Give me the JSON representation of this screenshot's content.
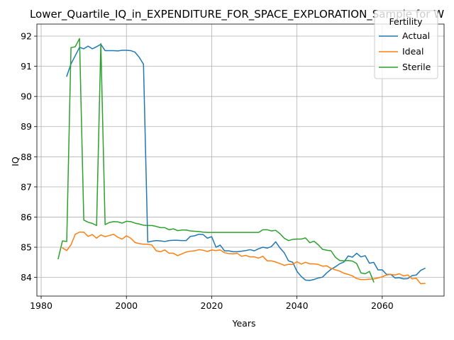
{
  "chart_data": {
    "type": "line",
    "title": "Lower_Quartile_IQ_in_EXPENDITURE_FOR_SPACE_EXPLORATION_Sample for W",
    "xlabel": "Years",
    "ylabel": "IQ",
    "xlim": [
      1979,
      2074.5
    ],
    "ylim": [
      83.38,
      92.4
    ],
    "xticks": [
      1980,
      2000,
      2020,
      2040,
      2060
    ],
    "yticks": [
      84,
      85,
      86,
      87,
      88,
      89,
      90,
      91,
      92
    ],
    "grid": true,
    "legend": {
      "title": "Fertility",
      "placement": "top-right"
    },
    "series": [
      {
        "name": "Actual",
        "color": "#1f77b4",
        "x": [
          1986,
          1987,
          1988,
          1989,
          1990,
          1991,
          1992,
          1993,
          1994,
          1995,
          1996,
          1997,
          1998,
          1999,
          2000,
          2001,
          2002,
          2003,
          2004,
          2005,
          2006,
          2007,
          2008,
          2009,
          2010,
          2011,
          2012,
          2013,
          2014,
          2015,
          2016,
          2017,
          2018,
          2019,
          2020,
          2021,
          2022,
          2023,
          2024,
          2025,
          2026,
          2027,
          2028,
          2029,
          2030,
          2031,
          2032,
          2033,
          2034,
          2035,
          2036,
          2037,
          2038,
          2039,
          2040,
          2041,
          2042,
          2043,
          2044,
          2045,
          2046,
          2047,
          2048,
          2049,
          2050,
          2051,
          2052,
          2053,
          2054,
          2055,
          2056,
          2057,
          2058,
          2059,
          2060,
          2061,
          2062,
          2063,
          2064,
          2065,
          2066,
          2067,
          2068,
          2069,
          2070
        ],
        "values": [
          90.67,
          91.08,
          91.35,
          91.63,
          91.58,
          91.67,
          91.58,
          91.65,
          91.73,
          91.52,
          91.52,
          91.52,
          91.51,
          91.53,
          91.53,
          91.52,
          91.47,
          91.3,
          91.07,
          85.17,
          85.2,
          85.22,
          85.21,
          85.19,
          85.22,
          85.23,
          85.23,
          85.22,
          85.22,
          85.36,
          85.38,
          85.43,
          85.42,
          85.3,
          85.35,
          85.0,
          85.07,
          84.88,
          84.88,
          84.85,
          84.85,
          84.87,
          84.89,
          84.92,
          84.88,
          84.95,
          85.0,
          84.97,
          85.02,
          85.18,
          84.98,
          84.82,
          84.55,
          84.5,
          84.2,
          84.03,
          83.91,
          83.9,
          83.93,
          83.98,
          84.01,
          84.15,
          84.27,
          84.35,
          84.45,
          84.51,
          84.71,
          84.67,
          84.8,
          84.68,
          84.72,
          84.47,
          84.5,
          84.25,
          84.25,
          84.1,
          84.1,
          83.98,
          83.99,
          83.95,
          83.96,
          84.06,
          84.08,
          84.23,
          84.3
        ]
      },
      {
        "name": "Ideal",
        "color": "#ff7f0e",
        "x": [
          1985,
          1986,
          1987,
          1988,
          1989,
          1990,
          1991,
          1992,
          1993,
          1994,
          1995,
          1996,
          1997,
          1998,
          1999,
          2000,
          2001,
          2002,
          2003,
          2004,
          2005,
          2006,
          2007,
          2008,
          2009,
          2010,
          2011,
          2012,
          2013,
          2014,
          2015,
          2016,
          2017,
          2018,
          2019,
          2020,
          2021,
          2022,
          2023,
          2024,
          2025,
          2026,
          2027,
          2028,
          2029,
          2030,
          2031,
          2032,
          2033,
          2034,
          2035,
          2036,
          2037,
          2038,
          2039,
          2040,
          2041,
          2042,
          2043,
          2044,
          2045,
          2046,
          2047,
          2048,
          2049,
          2050,
          2051,
          2052,
          2053,
          2054,
          2055,
          2056,
          2057,
          2058,
          2059,
          2060,
          2061,
          2062,
          2063,
          2064,
          2065,
          2066,
          2067,
          2068,
          2069,
          2070
        ],
        "values": [
          84.98,
          84.89,
          85.08,
          85.43,
          85.5,
          85.5,
          85.36,
          85.42,
          85.3,
          85.41,
          85.35,
          85.39,
          85.43,
          85.33,
          85.27,
          85.38,
          85.3,
          85.16,
          85.12,
          85.1,
          85.1,
          85.07,
          84.88,
          84.85,
          84.91,
          84.8,
          84.8,
          84.72,
          84.78,
          84.84,
          84.87,
          84.88,
          84.92,
          84.9,
          84.86,
          84.91,
          84.89,
          84.91,
          84.82,
          84.79,
          84.78,
          84.8,
          84.7,
          84.73,
          84.68,
          84.68,
          84.64,
          84.7,
          84.55,
          84.55,
          84.51,
          84.46,
          84.4,
          84.43,
          84.43,
          84.52,
          84.44,
          84.5,
          84.45,
          84.45,
          84.43,
          84.37,
          84.38,
          84.3,
          84.25,
          84.21,
          84.14,
          84.1,
          84.05,
          83.96,
          83.93,
          83.93,
          83.94,
          83.95,
          83.98,
          84.02,
          84.08,
          84.1,
          84.08,
          84.12,
          84.05,
          84.08,
          83.95,
          83.97,
          83.79,
          83.8
        ]
      },
      {
        "name": "Sterile",
        "color": "#2ca02c",
        "x": [
          1984,
          1985,
          1986,
          1987,
          1988,
          1989,
          1990,
          1991,
          1992,
          1993,
          1994,
          1995,
          1996,
          1997,
          1998,
          1999,
          2000,
          2001,
          2002,
          2003,
          2004,
          2005,
          2006,
          2007,
          2008,
          2009,
          2010,
          2011,
          2012,
          2013,
          2014,
          2015,
          2016,
          2017,
          2018,
          2019,
          2020,
          2021,
          2022,
          2023,
          2024,
          2025,
          2026,
          2027,
          2028,
          2029,
          2030,
          2031,
          2032,
          2033,
          2034,
          2035,
          2036,
          2037,
          2038,
          2039,
          2040,
          2041,
          2042,
          2043,
          2044,
          2045,
          2046,
          2047,
          2048,
          2049,
          2050,
          2051,
          2052,
          2053,
          2054,
          2055,
          2056,
          2057,
          2058
        ],
        "values": [
          84.62,
          85.21,
          85.19,
          91.62,
          91.65,
          91.92,
          85.9,
          85.83,
          85.79,
          85.72,
          91.75,
          85.75,
          85.82,
          85.85,
          85.84,
          85.8,
          85.86,
          85.85,
          85.8,
          85.77,
          85.73,
          85.72,
          85.72,
          85.69,
          85.65,
          85.65,
          85.58,
          85.61,
          85.55,
          85.57,
          85.57,
          85.54,
          85.53,
          85.52,
          85.5,
          85.49,
          85.49,
          85.49,
          85.49,
          85.49,
          85.49,
          85.49,
          85.49,
          85.49,
          85.49,
          85.49,
          85.49,
          85.49,
          85.58,
          85.58,
          85.54,
          85.56,
          85.45,
          85.3,
          85.22,
          85.26,
          85.27,
          85.27,
          85.31,
          85.15,
          85.2,
          85.08,
          84.93,
          84.9,
          84.88,
          84.67,
          84.56,
          84.55,
          84.56,
          84.54,
          84.46,
          84.15,
          84.12,
          84.2,
          83.85
        ]
      }
    ]
  }
}
